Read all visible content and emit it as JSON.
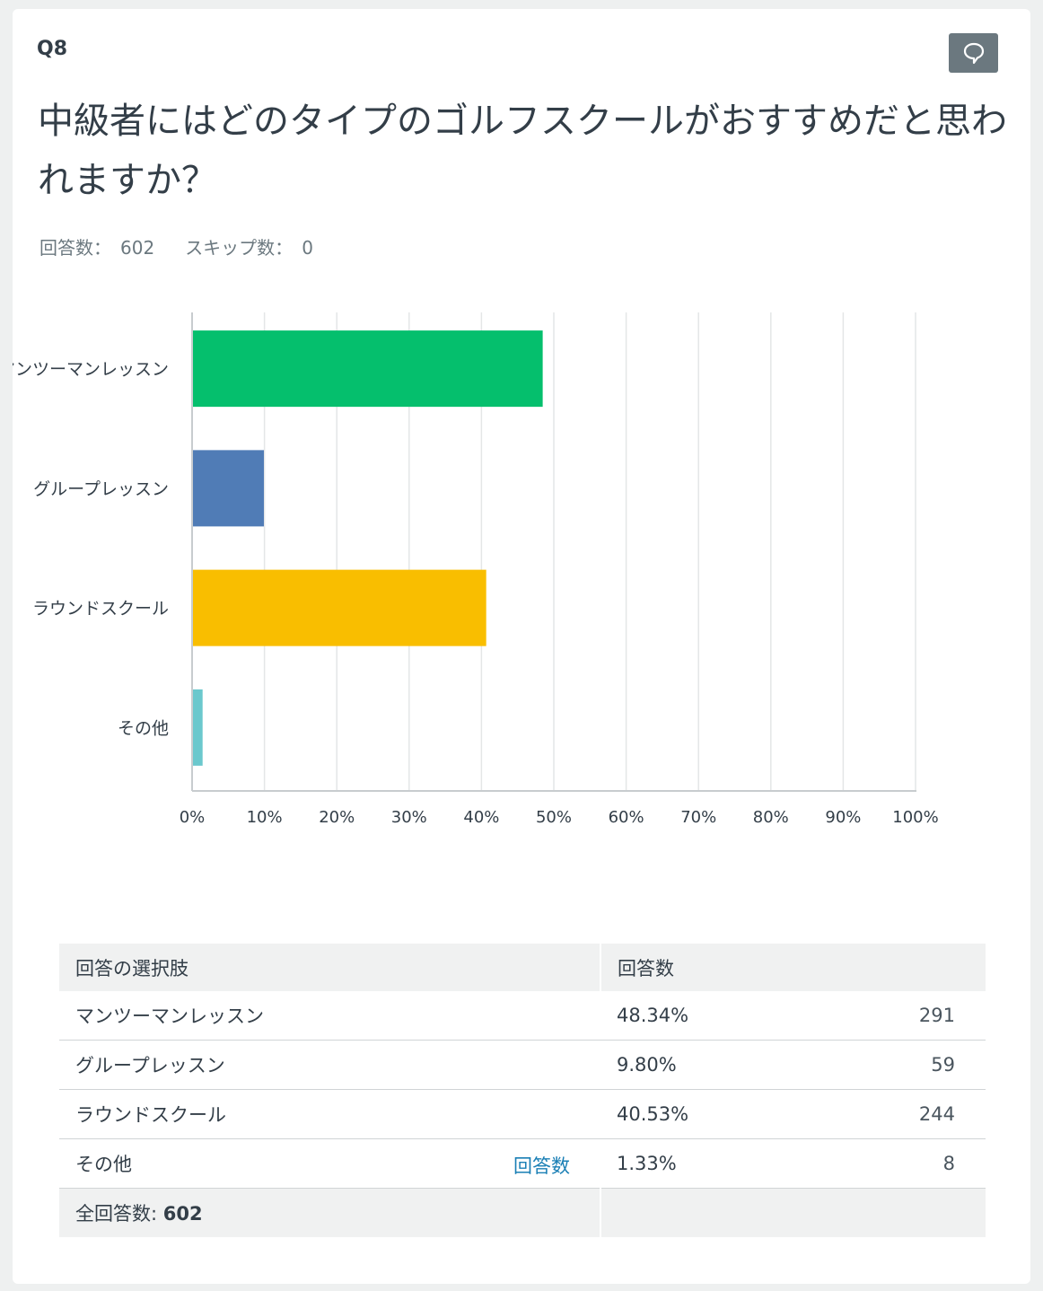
{
  "question": {
    "number": "Q8",
    "title": "中級者にはどのタイプのゴルフスクールがおすすめだと思われますか？",
    "answered_label": "回答数：",
    "answered_value": "602",
    "skipped_label": "スキップ数：",
    "skipped_value": "0",
    "comment_icon": "speech-bubble-icon"
  },
  "colors": {
    "bar1": "#05bf6d",
    "bar2": "#507cb6",
    "bar3": "#f9be00",
    "bar4": "#6bc8cd",
    "grid": "#e4e6e7",
    "axis": "#c8cccf"
  },
  "chart_data": {
    "type": "bar",
    "orientation": "horizontal",
    "categories": [
      "マンツーマンレッスン",
      "グループレッスン",
      "ラウンドスクール",
      "その他"
    ],
    "values": [
      48.34,
      9.8,
      40.53,
      1.33
    ],
    "xticks": [
      "0%",
      "10%",
      "20%",
      "30%",
      "40%",
      "50%",
      "60%",
      "70%",
      "80%",
      "90%",
      "100%"
    ],
    "xlim": [
      0,
      100
    ],
    "grid": true
  },
  "table": {
    "header_choice": "回答の選択肢",
    "header_responses": "回答数",
    "rows": [
      {
        "label": "マンツーマンレッスン",
        "pct": "48.34%",
        "count": "291"
      },
      {
        "label": "グループレッスン",
        "pct": "9.80%",
        "count": "59"
      },
      {
        "label": "ラウンドスクール",
        "pct": "40.53%",
        "count": "244"
      },
      {
        "label": "その他",
        "pct": "1.33%",
        "count": "8",
        "link": "回答数"
      }
    ],
    "total_label": "全回答数:",
    "total_value": "602"
  }
}
